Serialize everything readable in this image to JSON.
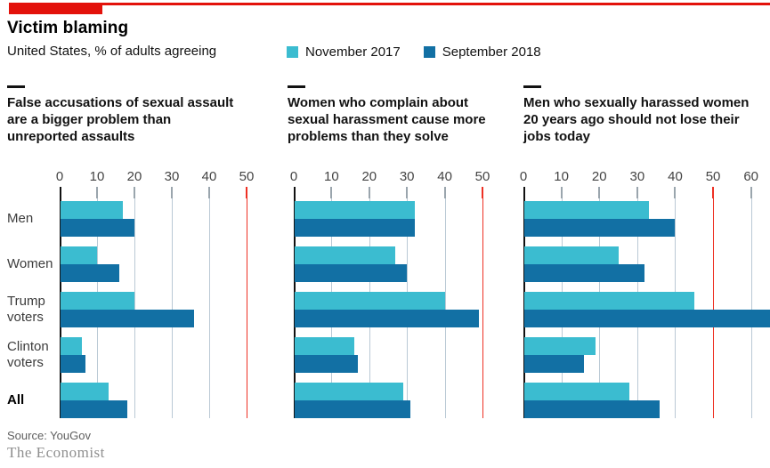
{
  "header": {
    "title": "Victim blaming",
    "subtitle": "United States, % of adults agreeing"
  },
  "legend": {
    "items": [
      {
        "label": "November 2017",
        "color": "#3bbcd0"
      },
      {
        "label": "September 2018",
        "color": "#1270a4"
      }
    ]
  },
  "colors": {
    "accent_red": "#e3120b",
    "grid": "#bac9d5",
    "red_grid": "#ee3124",
    "tick": "#9aa5ad",
    "series1": "#3bbcd0",
    "series2": "#1270a4"
  },
  "categories": [
    "Men",
    "Women",
    "Trump voters",
    "Clinton voters",
    "All"
  ],
  "chart_data": [
    {
      "type": "bar",
      "title": "False accusations of sexual assault are a bigger problem than unreported assaults",
      "categories": [
        "Men",
        "Women",
        "Trump voters",
        "Clinton voters",
        "All"
      ],
      "series": [
        {
          "name": "November 2017",
          "values": [
            17,
            10,
            20,
            6,
            13
          ]
        },
        {
          "name": "September 2018",
          "values": [
            20,
            16,
            36,
            7,
            18
          ]
        }
      ],
      "xlim": [
        0,
        50
      ],
      "ticks": [
        0,
        10,
        20,
        30,
        40,
        50
      ],
      "red_line_at": 50,
      "legend_position": "top",
      "grid": "vertical"
    },
    {
      "type": "bar",
      "title": "Women who complain about sexual harassment cause more problems than they solve",
      "categories": [
        "Men",
        "Women",
        "Trump voters",
        "Clinton voters",
        "All"
      ],
      "series": [
        {
          "name": "November 2017",
          "values": [
            32,
            27,
            40,
            16,
            29
          ]
        },
        {
          "name": "September 2018",
          "values": [
            32,
            30,
            49,
            17,
            31
          ]
        }
      ],
      "xlim": [
        0,
        50
      ],
      "ticks": [
        0,
        10,
        20,
        30,
        40,
        50
      ],
      "red_line_at": 50,
      "legend_position": "top",
      "grid": "vertical"
    },
    {
      "type": "bar",
      "title": "Men who sexually harassed women 20 years ago should not lose their jobs today",
      "categories": [
        "Men",
        "Women",
        "Trump voters",
        "Clinton voters",
        "All"
      ],
      "series": [
        {
          "name": "November 2017",
          "values": [
            33,
            25,
            45,
            19,
            28
          ]
        },
        {
          "name": "September 2018",
          "values": [
            40,
            32,
            65,
            16,
            36
          ]
        }
      ],
      "xlim": [
        0,
        65
      ],
      "ticks": [
        0,
        10,
        20,
        30,
        40,
        50,
        60
      ],
      "red_line_at": 50,
      "legend_position": "top",
      "grid": "vertical"
    }
  ],
  "footer": {
    "source": "Source: YouGov",
    "brand": "The Economist"
  }
}
